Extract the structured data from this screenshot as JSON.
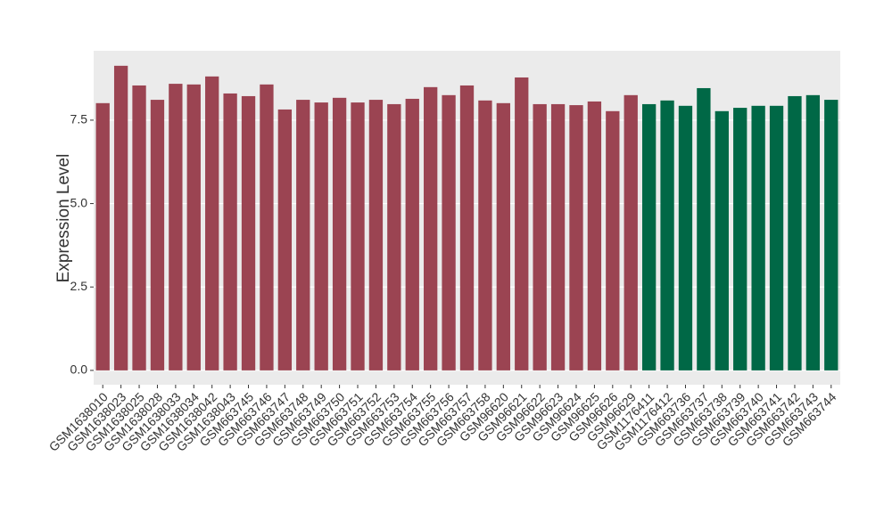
{
  "chart_data": {
    "type": "bar",
    "y_label": "Expression Level",
    "categories": [
      "GSM1638010",
      "GSM1638023",
      "GSM1638025",
      "GSM1638028",
      "GSM1638033",
      "GSM1638034",
      "GSM1638042",
      "GSM1638043",
      "GSM663745",
      "GSM663746",
      "GSM663747",
      "GSM663748",
      "GSM663749",
      "GSM663750",
      "GSM663751",
      "GSM663752",
      "GSM663753",
      "GSM663754",
      "GSM663755",
      "GSM663756",
      "GSM663757",
      "GSM663758",
      "GSM96620",
      "GSM96621",
      "GSM96622",
      "GSM96623",
      "GSM96624",
      "GSM96625",
      "GSM96626",
      "GSM96629",
      "GSM1176411",
      "GSM1176412",
      "GSM663736",
      "GSM663737",
      "GSM663738",
      "GSM663739",
      "GSM663740",
      "GSM663741",
      "GSM663742",
      "GSM663743",
      "GSM663744"
    ],
    "series": [
      {
        "color": "#9b4452",
        "values": [
          8.01,
          9.13,
          8.54,
          8.11,
          8.59,
          8.57,
          8.81,
          8.3,
          8.22,
          8.57,
          7.82,
          8.11,
          8.03,
          8.17,
          8.03,
          8.11,
          7.98,
          8.14,
          8.49,
          8.25,
          8.54,
          8.09,
          8.01,
          8.78,
          7.98,
          7.98,
          7.95,
          8.06,
          7.77,
          8.25,
          null,
          null,
          null,
          null,
          null,
          null,
          null,
          null,
          null,
          null,
          null
        ]
      },
      {
        "color": "#006846",
        "values": [
          null,
          null,
          null,
          null,
          null,
          null,
          null,
          null,
          null,
          null,
          null,
          null,
          null,
          null,
          null,
          null,
          null,
          null,
          null,
          null,
          null,
          null,
          null,
          null,
          null,
          null,
          null,
          null,
          null,
          null,
          7.98,
          8.09,
          7.93,
          8.46,
          7.77,
          7.87,
          7.93,
          7.93,
          8.22,
          8.25,
          8.11
        ]
      }
    ],
    "ylim": [
      -0.43,
      9.58
    ],
    "yticks": [
      {
        "value": 0,
        "label": "0.0"
      },
      2.5,
      {
        "value": 5,
        "label": "5.0"
      },
      7.5
    ],
    "grid": true
  }
}
